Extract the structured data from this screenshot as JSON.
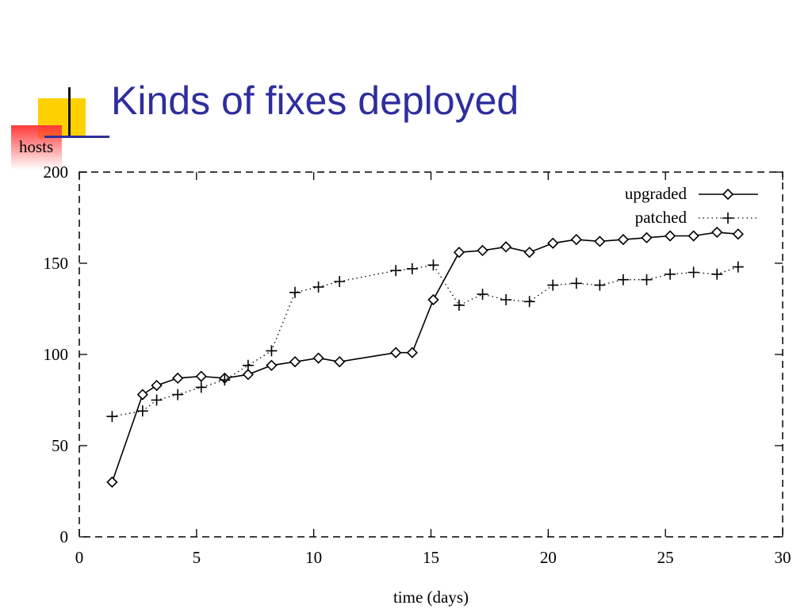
{
  "slide": {
    "title": "Kinds of fixes deployed",
    "title_color": "#2e2e9e",
    "accent_yellow": "#ffd000",
    "accent_red": "#ff3a3a"
  },
  "chart_data": {
    "type": "line",
    "title": "",
    "xlabel": "time (days)",
    "ylabel": "hosts",
    "xlim": [
      0,
      30
    ],
    "ylim": [
      0,
      200
    ],
    "xticks": [
      0,
      5,
      10,
      15,
      20,
      25,
      30
    ],
    "yticks": [
      0,
      50,
      100,
      150,
      200
    ],
    "grid": false,
    "legend": "top-right",
    "series": [
      {
        "name": "upgraded",
        "marker": "diamond",
        "line": "solid",
        "x": [
          1.4,
          2.7,
          3.3,
          4.2,
          5.2,
          6.2,
          7.2,
          8.2,
          9.2,
          10.2,
          11.1,
          13.5,
          14.2,
          15.1,
          16.2,
          17.2,
          18.2,
          19.2,
          20.2,
          21.2,
          22.2,
          23.2,
          24.2,
          25.2,
          26.2,
          27.2,
          28.1
        ],
        "y": [
          30,
          78,
          83,
          87,
          88,
          87,
          89,
          94,
          96,
          98,
          96,
          101,
          101,
          130,
          156,
          157,
          159,
          156,
          161,
          163,
          162,
          163,
          164,
          165,
          165,
          167,
          166
        ]
      },
      {
        "name": "patched",
        "marker": "plus",
        "line": "dotted",
        "x": [
          1.4,
          2.7,
          3.3,
          4.2,
          5.2,
          6.2,
          7.2,
          8.2,
          9.2,
          10.2,
          11.1,
          13.5,
          14.2,
          15.1,
          16.2,
          17.2,
          18.2,
          19.2,
          20.2,
          21.2,
          22.2,
          23.2,
          24.2,
          25.2,
          26.2,
          27.2,
          28.1
        ],
        "y": [
          66,
          69,
          75,
          78,
          82,
          86,
          94,
          102,
          134,
          137,
          140,
          146,
          147,
          149,
          127,
          133,
          130,
          129,
          138,
          139,
          138,
          141,
          141,
          144,
          145,
          144,
          148
        ]
      }
    ]
  }
}
